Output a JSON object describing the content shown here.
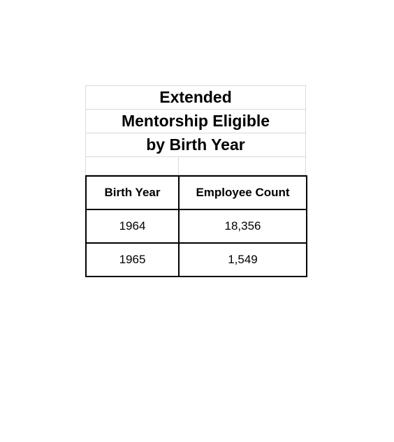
{
  "title": {
    "line1": "Extended",
    "line2": "Mentorship Eligible",
    "line3": "by Birth Year"
  },
  "table": {
    "headers": [
      "Birth Year",
      "Employee Count"
    ],
    "rows": [
      [
        "1964",
        "18,356"
      ],
      [
        "1965",
        "1,549"
      ]
    ]
  }
}
